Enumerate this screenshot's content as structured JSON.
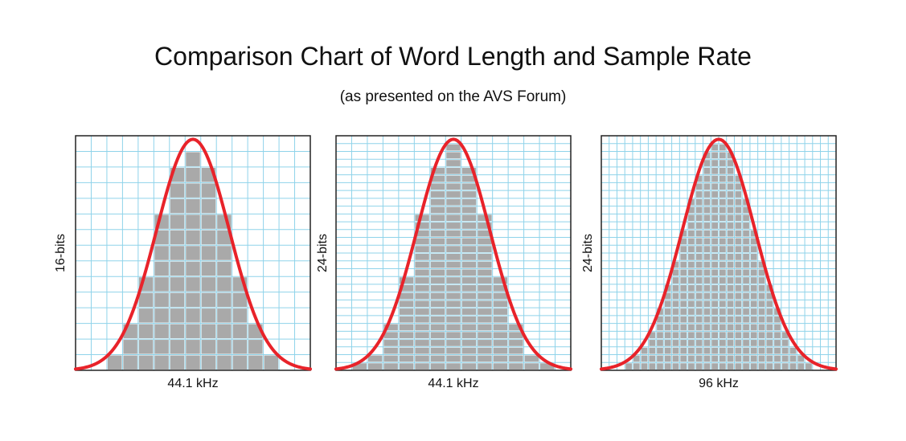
{
  "title": "Comparison Chart of Word Length and Sample Rate",
  "subtitle": "(as presented on the AVS Forum)",
  "colors": {
    "curve": "#e8232a",
    "block": "#a9a9a9",
    "grid": "#8fd3ea",
    "frame": "#222222"
  },
  "panels": [
    {
      "xlabel": "44.1 kHz",
      "ylabel": "16-bits",
      "cols": 15,
      "rows": 15
    },
    {
      "xlabel": "44.1 kHz",
      "ylabel": "24-bits",
      "cols": 15,
      "rows": 30
    },
    {
      "xlabel": "96 kHz",
      "ylabel": "24-bits",
      "cols": 30,
      "rows": 30
    }
  ]
}
